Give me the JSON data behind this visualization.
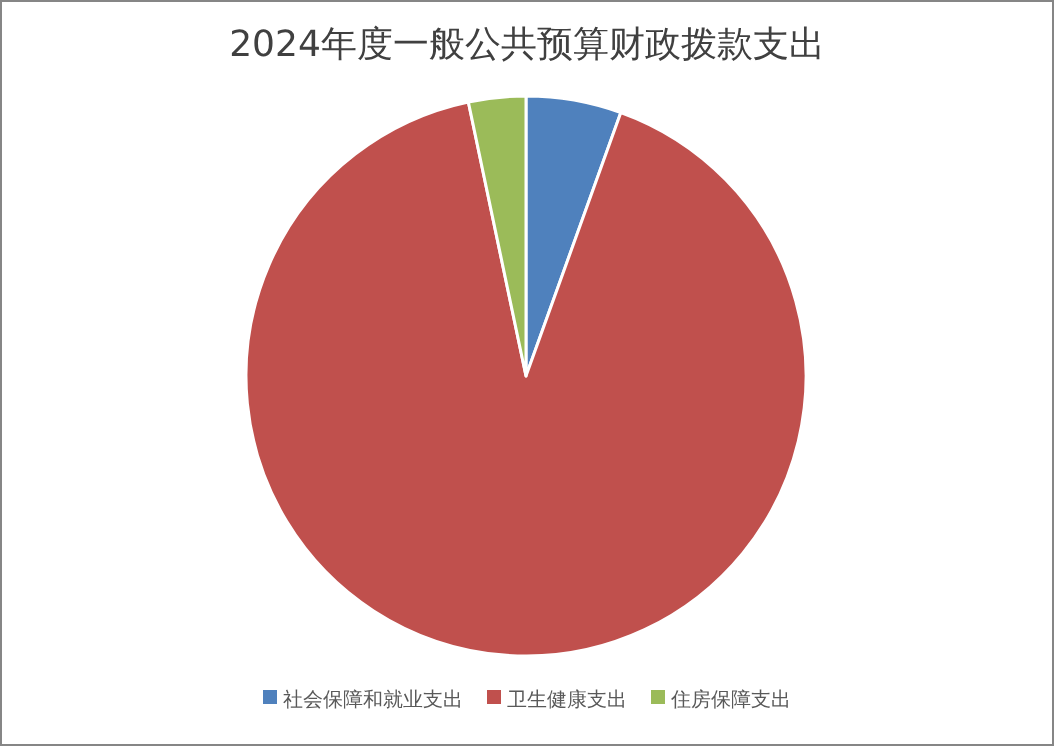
{
  "chart_data": {
    "type": "pie",
    "title": "2024年度一般公共预算财政拨款支出",
    "categories": [
      "社会保障和就业支出",
      "卫生健康支出",
      "住房保障支出"
    ],
    "values": [
      5.5,
      91.2,
      3.3
    ],
    "colors": [
      "#4f81bd",
      "#c0504d",
      "#9bbb59"
    ],
    "legend": "bottom"
  }
}
